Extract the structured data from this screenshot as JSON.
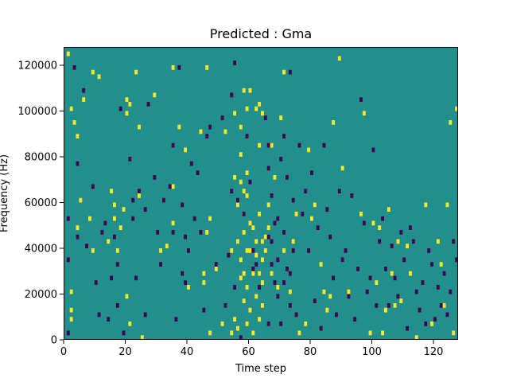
{
  "chart_data": {
    "type": "heatmap",
    "title": "Predicted : Gma",
    "xlabel": "Time step",
    "ylabel": "Frequency (Hz)",
    "xlim": [
      0,
      128
    ],
    "ylim": [
      0,
      128000
    ],
    "x_ticks": [
      0,
      20,
      40,
      60,
      80,
      100,
      120
    ],
    "y_ticks": [
      0,
      20000,
      40000,
      60000,
      80000,
      100000,
      120000
    ],
    "grid": false,
    "n_time_steps": 128,
    "n_freq_bins": 64,
    "freq_bin_hz": 2000,
    "colors": {
      "background": "#21908d",
      "high": "#fde725",
      "low": "#440154"
    },
    "high_cells": [
      [
        2,
        126000
      ],
      [
        3,
        10000
      ],
      [
        3,
        22000
      ],
      [
        3,
        14000
      ],
      [
        3,
        102000
      ],
      [
        4,
        96000
      ],
      [
        5,
        50000
      ],
      [
        5,
        90000
      ],
      [
        6,
        62000
      ],
      [
        7,
        106000
      ],
      [
        9,
        54000
      ],
      [
        10,
        40000
      ],
      [
        10,
        118000
      ],
      [
        12,
        116000
      ],
      [
        15,
        44000
      ],
      [
        16,
        66000
      ],
      [
        17,
        60000
      ],
      [
        17,
        54000
      ],
      [
        18,
        40000
      ],
      [
        19,
        50000
      ],
      [
        20,
        58000
      ],
      [
        21,
        106000
      ],
      [
        21,
        100000
      ],
      [
        21,
        20000
      ],
      [
        22,
        8000
      ],
      [
        22,
        104000
      ],
      [
        24,
        118000
      ],
      [
        25,
        94000
      ],
      [
        25,
        64000
      ],
      [
        26,
        2000
      ],
      [
        30,
        108000
      ],
      [
        32,
        40000
      ],
      [
        34,
        42000
      ],
      [
        36,
        120000
      ],
      [
        36,
        68000
      ],
      [
        36,
        52000
      ],
      [
        38,
        94000
      ],
      [
        40,
        84000
      ],
      [
        41,
        24000
      ],
      [
        45,
        92000
      ],
      [
        46,
        26000
      ],
      [
        46,
        30000
      ],
      [
        47,
        48000
      ],
      [
        47,
        120000
      ],
      [
        48,
        4000
      ],
      [
        48,
        54000
      ],
      [
        50,
        32000
      ],
      [
        52,
        8000
      ],
      [
        53,
        92000
      ],
      [
        55,
        4000
      ],
      [
        55,
        40000
      ],
      [
        56,
        72000
      ],
      [
        56,
        100000
      ],
      [
        56,
        10000
      ],
      [
        57,
        6000
      ],
      [
        57,
        44000
      ],
      [
        57,
        60000
      ],
      [
        58,
        28000
      ],
      [
        58,
        36000
      ],
      [
        58,
        70000
      ],
      [
        58,
        82000
      ],
      [
        58,
        94000
      ],
      [
        59,
        18000
      ],
      [
        59,
        30000
      ],
      [
        59,
        48000
      ],
      [
        59,
        56000
      ],
      [
        59,
        66000
      ],
      [
        59,
        110000
      ],
      [
        60,
        8000
      ],
      [
        60,
        24000
      ],
      [
        60,
        40000
      ],
      [
        60,
        64000
      ],
      [
        60,
        74000
      ],
      [
        60,
        102000
      ],
      [
        61,
        14000
      ],
      [
        61,
        40000
      ],
      [
        61,
        52000
      ],
      [
        61,
        110000
      ],
      [
        62,
        30000
      ],
      [
        62,
        50000
      ],
      [
        62,
        4000
      ],
      [
        63,
        20000
      ],
      [
        63,
        38000
      ],
      [
        63,
        44000
      ],
      [
        63,
        102000
      ],
      [
        64,
        10000
      ],
      [
        64,
        30000
      ],
      [
        64,
        56000
      ],
      [
        64,
        104000
      ],
      [
        64,
        86000
      ],
      [
        65,
        16000
      ],
      [
        65,
        26000
      ],
      [
        65,
        36000
      ],
      [
        65,
        44000
      ],
      [
        65,
        100000
      ],
      [
        66,
        46000
      ],
      [
        66,
        40000
      ],
      [
        67,
        60000
      ],
      [
        67,
        50000
      ],
      [
        68,
        86000
      ],
      [
        68,
        30000
      ],
      [
        69,
        72000
      ],
      [
        70,
        24000
      ],
      [
        71,
        98000
      ],
      [
        72,
        40000
      ],
      [
        72,
        118000
      ],
      [
        74,
        22000
      ],
      [
        75,
        44000
      ],
      [
        76,
        56000
      ],
      [
        77,
        4000
      ],
      [
        79,
        8000
      ],
      [
        80,
        84000
      ],
      [
        81,
        54000
      ],
      [
        82,
        60000
      ],
      [
        84,
        34000
      ],
      [
        85,
        22000
      ],
      [
        86,
        14000
      ],
      [
        87,
        20000
      ],
      [
        88,
        96000
      ],
      [
        90,
        124000
      ],
      [
        91,
        76000
      ],
      [
        93,
        22000
      ],
      [
        97,
        56000
      ],
      [
        98,
        100000
      ],
      [
        100,
        4000
      ],
      [
        101,
        52000
      ],
      [
        102,
        26000
      ],
      [
        103,
        50000
      ],
      [
        104,
        4000
      ],
      [
        105,
        14000
      ],
      [
        106,
        58000
      ],
      [
        107,
        30000
      ],
      [
        108,
        16000
      ],
      [
        109,
        44000
      ],
      [
        110,
        18000
      ],
      [
        112,
        42000
      ],
      [
        113,
        30000
      ],
      [
        115,
        2000
      ],
      [
        118,
        60000
      ],
      [
        120,
        8000
      ],
      [
        122,
        44000
      ],
      [
        123,
        34000
      ],
      [
        124,
        16000
      ],
      [
        125,
        60000
      ],
      [
        126,
        96000
      ],
      [
        127,
        4000
      ],
      [
        128,
        102000
      ]
    ],
    "low_cells": [
      [
        2,
        4000
      ],
      [
        2,
        36000
      ],
      [
        2,
        54000
      ],
      [
        4,
        120000
      ],
      [
        5,
        46000
      ],
      [
        5,
        78000
      ],
      [
        7,
        110000
      ],
      [
        8,
        42000
      ],
      [
        10,
        68000
      ],
      [
        11,
        26000
      ],
      [
        12,
        12000
      ],
      [
        13,
        48000
      ],
      [
        14,
        52000
      ],
      [
        15,
        10000
      ],
      [
        16,
        28000
      ],
      [
        17,
        46000
      ],
      [
        18,
        16000
      ],
      [
        18,
        34000
      ],
      [
        19,
        102000
      ],
      [
        20,
        4000
      ],
      [
        22,
        80000
      ],
      [
        23,
        62000
      ],
      [
        23,
        54000
      ],
      [
        24,
        28000
      ],
      [
        25,
        66000
      ],
      [
        27,
        58000
      ],
      [
        27,
        12000
      ],
      [
        28,
        104000
      ],
      [
        30,
        72000
      ],
      [
        31,
        48000
      ],
      [
        32,
        34000
      ],
      [
        33,
        62000
      ],
      [
        35,
        68000
      ],
      [
        36,
        48000
      ],
      [
        36,
        86000
      ],
      [
        37,
        10000
      ],
      [
        38,
        120000
      ],
      [
        39,
        60000
      ],
      [
        39,
        30000
      ],
      [
        40,
        46000
      ],
      [
        40,
        26000
      ],
      [
        41,
        40000
      ],
      [
        42,
        78000
      ],
      [
        43,
        54000
      ],
      [
        44,
        74000
      ],
      [
        45,
        48000
      ],
      [
        46,
        14000
      ],
      [
        47,
        90000
      ],
      [
        48,
        94000
      ],
      [
        50,
        34000
      ],
      [
        52,
        98000
      ],
      [
        53,
        16000
      ],
      [
        54,
        38000
      ],
      [
        55,
        66000
      ],
      [
        55,
        108000
      ],
      [
        56,
        122000
      ],
      [
        56,
        24000
      ],
      [
        57,
        62000
      ],
      [
        58,
        2000
      ],
      [
        59,
        56000
      ],
      [
        60,
        90000
      ],
      [
        61,
        70000
      ],
      [
        62,
        40000
      ],
      [
        62,
        32000
      ],
      [
        63,
        34000
      ],
      [
        64,
        24000
      ],
      [
        66,
        98000
      ],
      [
        67,
        46000
      ],
      [
        67,
        8000
      ],
      [
        67,
        76000
      ],
      [
        67,
        86000
      ],
      [
        68,
        44000
      ],
      [
        68,
        34000
      ],
      [
        68,
        64000
      ],
      [
        69,
        52000
      ],
      [
        69,
        26000
      ],
      [
        70,
        36000
      ],
      [
        70,
        54000
      ],
      [
        70,
        20000
      ],
      [
        71,
        80000
      ],
      [
        71,
        8000
      ],
      [
        72,
        90000
      ],
      [
        72,
        48000
      ],
      [
        72,
        26000
      ],
      [
        73,
        32000
      ],
      [
        73,
        72000
      ],
      [
        74,
        30000
      ],
      [
        74,
        16000
      ],
      [
        74,
        118000
      ],
      [
        75,
        62000
      ],
      [
        75,
        40000
      ],
      [
        76,
        12000
      ],
      [
        77,
        86000
      ],
      [
        78,
        56000
      ],
      [
        79,
        66000
      ],
      [
        80,
        40000
      ],
      [
        81,
        74000
      ],
      [
        82,
        18000
      ],
      [
        83,
        50000
      ],
      [
        84,
        6000
      ],
      [
        85,
        86000
      ],
      [
        86,
        58000
      ],
      [
        87,
        46000
      ],
      [
        88,
        28000
      ],
      [
        89,
        12000
      ],
      [
        90,
        66000
      ],
      [
        91,
        36000
      ],
      [
        92,
        40000
      ],
      [
        93,
        20000
      ],
      [
        94,
        64000
      ],
      [
        95,
        10000
      ],
      [
        96,
        32000
      ],
      [
        97,
        106000
      ],
      [
        98,
        52000
      ],
      [
        99,
        22000
      ],
      [
        100,
        28000
      ],
      [
        101,
        84000
      ],
      [
        102,
        16000
      ],
      [
        103,
        44000
      ],
      [
        104,
        54000
      ],
      [
        105,
        32000
      ],
      [
        106,
        16000
      ],
      [
        107,
        42000
      ],
      [
        108,
        28000
      ],
      [
        109,
        20000
      ],
      [
        110,
        48000
      ],
      [
        111,
        36000
      ],
      [
        112,
        6000
      ],
      [
        113,
        50000
      ],
      [
        114,
        44000
      ],
      [
        115,
        22000
      ],
      [
        116,
        14000
      ],
      [
        117,
        26000
      ],
      [
        118,
        8000
      ],
      [
        119,
        40000
      ],
      [
        120,
        34000
      ],
      [
        121,
        10000
      ],
      [
        122,
        24000
      ],
      [
        123,
        16000
      ],
      [
        124,
        30000
      ],
      [
        125,
        12000
      ],
      [
        126,
        22000
      ],
      [
        127,
        44000
      ],
      [
        128,
        36000
      ]
    ]
  }
}
